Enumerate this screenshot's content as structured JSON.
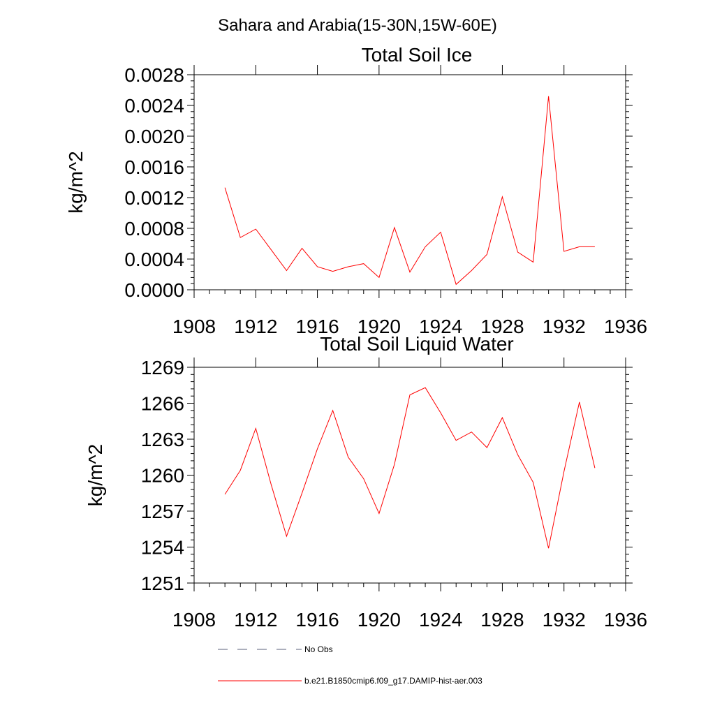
{
  "figure": {
    "title": "Sahara and Arabia(15-30N,15W-60E)"
  },
  "chart_data": [
    {
      "type": "line",
      "title": "Total Soil Ice",
      "xlabel": "",
      "ylabel": "kg/m^2",
      "xlim": [
        1908,
        1936
      ],
      "ylim": [
        0.0,
        0.0028
      ],
      "x_ticks": [
        1908,
        1912,
        1916,
        1920,
        1924,
        1928,
        1932,
        1936
      ],
      "x_tick_labels": [
        "1908",
        "1912",
        "1916",
        "1920",
        "1924",
        "1928",
        "1932",
        "1936"
      ],
      "y_ticks": [
        0.0,
        0.0004,
        0.0008,
        0.0012,
        0.0016,
        0.002,
        0.0024,
        0.0028
      ],
      "y_tick_labels": [
        "0.0000",
        "0.0004",
        "0.0008",
        "0.0012",
        "0.0016",
        "0.0020",
        "0.0024",
        "0.0028"
      ],
      "grid": false,
      "series": [
        {
          "name": "b.e21.B1850cmip6.f09_g17.DAMIP-hist-aer.003",
          "color": "#ff0000",
          "x": [
            1910,
            1911,
            1912,
            1913,
            1914,
            1915,
            1916,
            1917,
            1918,
            1919,
            1920,
            1921,
            1922,
            1923,
            1924,
            1925,
            1926,
            1927,
            1928,
            1929,
            1930,
            1931,
            1932,
            1933,
            1934
          ],
          "values": [
            0.00133,
            0.00068,
            0.00079,
            0.00052,
            0.00025,
            0.00054,
            0.0003,
            0.00024,
            0.0003,
            0.00034,
            0.00016,
            0.00081,
            0.00023,
            0.00056,
            0.00075,
            7e-05,
            0.00025,
            0.00046,
            0.00121,
            0.00049,
            0.00036,
            0.00252,
            0.0005,
            0.00056,
            0.00056
          ]
        }
      ]
    },
    {
      "type": "line",
      "title": "Total Soil Liquid Water",
      "xlabel": "",
      "ylabel": "kg/m^2",
      "xlim": [
        1908,
        1936
      ],
      "ylim": [
        1251,
        1269
      ],
      "x_ticks": [
        1908,
        1912,
        1916,
        1920,
        1924,
        1928,
        1932,
        1936
      ],
      "x_tick_labels": [
        "1908",
        "1912",
        "1916",
        "1920",
        "1924",
        "1928",
        "1932",
        "1936"
      ],
      "y_ticks": [
        1251,
        1254,
        1257,
        1260,
        1263,
        1266,
        1269
      ],
      "y_tick_labels": [
        "1251",
        "1254",
        "1257",
        "1260",
        "1263",
        "1266",
        "1269"
      ],
      "grid": false,
      "series": [
        {
          "name": "b.e21.B1850cmip6.f09_g17.DAMIP-hist-aer.003",
          "color": "#ff0000",
          "x": [
            1910,
            1911,
            1912,
            1913,
            1914,
            1915,
            1916,
            1917,
            1918,
            1919,
            1920,
            1921,
            1922,
            1923,
            1924,
            1925,
            1926,
            1927,
            1928,
            1929,
            1930,
            1931,
            1932,
            1933,
            1934
          ],
          "values": [
            1258.4,
            1260.4,
            1263.9,
            1259.2,
            1254.9,
            1258.5,
            1262.2,
            1265.4,
            1261.5,
            1259.7,
            1256.8,
            1260.9,
            1266.7,
            1267.3,
            1265.2,
            1262.9,
            1263.6,
            1262.3,
            1264.8,
            1261.7,
            1259.4,
            1253.9,
            1260.3,
            1266.1,
            1260.6
          ]
        }
      ]
    }
  ],
  "legend": {
    "placement": "bottom-left",
    "entries": [
      {
        "label": "No Obs",
        "style": "dashed",
        "color": "#5a5f7a"
      },
      {
        "label": "b.e21.B1850cmip6.f09_g17.DAMIP-hist-aer.003",
        "style": "solid",
        "color": "#ff0000"
      }
    ]
  }
}
